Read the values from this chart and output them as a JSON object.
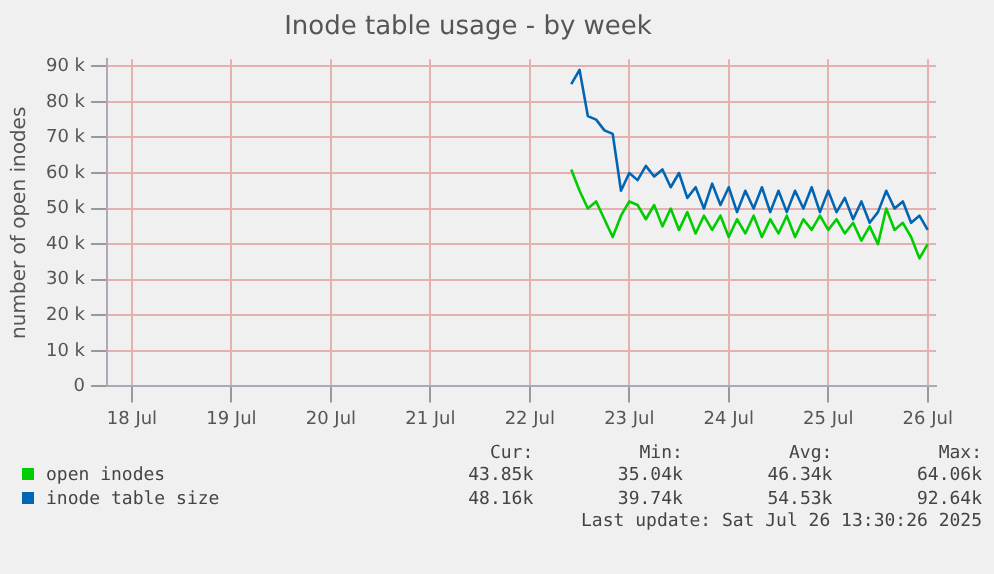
{
  "chart_data": {
    "type": "line",
    "title": "Inode table usage - by week",
    "ylabel": "number of open inodes",
    "x": [
      "2025-07-22T22:00",
      "2025-07-23T00:00",
      "2025-07-23T02:00",
      "2025-07-23T04:00",
      "2025-07-23T06:00",
      "2025-07-23T08:00",
      "2025-07-23T10:00",
      "2025-07-23T12:00",
      "2025-07-23T14:00",
      "2025-07-23T16:00",
      "2025-07-23T18:00",
      "2025-07-23T20:00",
      "2025-07-23T22:00",
      "2025-07-24T00:00",
      "2025-07-24T02:00",
      "2025-07-24T04:00",
      "2025-07-24T06:00",
      "2025-07-24T08:00",
      "2025-07-24T10:00",
      "2025-07-24T12:00",
      "2025-07-24T14:00",
      "2025-07-24T16:00",
      "2025-07-24T18:00",
      "2025-07-24T20:00",
      "2025-07-24T22:00",
      "2025-07-25T00:00",
      "2025-07-25T02:00",
      "2025-07-25T04:00",
      "2025-07-25T06:00",
      "2025-07-25T08:00",
      "2025-07-25T10:00",
      "2025-07-25T12:00",
      "2025-07-25T14:00",
      "2025-07-25T16:00",
      "2025-07-25T18:00",
      "2025-07-25T20:00",
      "2025-07-25T22:00",
      "2025-07-26T00:00",
      "2025-07-26T02:00",
      "2025-07-26T04:00",
      "2025-07-26T06:00",
      "2025-07-26T08:00",
      "2025-07-26T10:00",
      "2025-07-26T12:00"
    ],
    "series": [
      {
        "name": "open inodes",
        "color": "#00cc00",
        "values": [
          61000,
          55000,
          50000,
          52000,
          47000,
          42000,
          48000,
          52000,
          51000,
          47000,
          51000,
          45000,
          50000,
          44000,
          49000,
          43000,
          48000,
          44000,
          48000,
          42000,
          47000,
          43000,
          48000,
          42000,
          47000,
          43000,
          48000,
          42000,
          47000,
          44000,
          48000,
          44000,
          47000,
          43000,
          46000,
          41000,
          45000,
          40000,
          50000,
          44000,
          46000,
          42000,
          36000,
          40000
        ]
      },
      {
        "name": "inode table size",
        "color": "#0066b3",
        "values": [
          85000,
          89000,
          76000,
          75000,
          72000,
          71000,
          55000,
          60000,
          58000,
          62000,
          59000,
          61000,
          56000,
          60000,
          53000,
          56000,
          50000,
          57000,
          51000,
          56000,
          49000,
          55000,
          50000,
          56000,
          49000,
          55000,
          49000,
          55000,
          50000,
          56000,
          49000,
          55000,
          49000,
          53000,
          47000,
          52000,
          46000,
          49000,
          55000,
          50000,
          52000,
          46000,
          48000,
          44000
        ]
      }
    ],
    "ylim": [
      0,
      92000
    ],
    "yticks": [
      {
        "value": 0,
        "label": "0"
      },
      {
        "value": 10000,
        "label": "10 k"
      },
      {
        "value": 20000,
        "label": "20 k"
      },
      {
        "value": 30000,
        "label": "30 k"
      },
      {
        "value": 40000,
        "label": "40 k"
      },
      {
        "value": 50000,
        "label": "50 k"
      },
      {
        "value": 60000,
        "label": "60 k"
      },
      {
        "value": 70000,
        "label": "70 k"
      },
      {
        "value": 80000,
        "label": "80 k"
      },
      {
        "value": 90000,
        "label": "90 k"
      }
    ],
    "xlim": [
      "2025-07-18T06:00",
      "2025-07-26T14:00"
    ],
    "xticks": [
      {
        "value": "2025-07-18T12:00",
        "label": "18 Jul"
      },
      {
        "value": "2025-07-19T12:00",
        "label": "19 Jul"
      },
      {
        "value": "2025-07-20T12:00",
        "label": "20 Jul"
      },
      {
        "value": "2025-07-21T12:00",
        "label": "21 Jul"
      },
      {
        "value": "2025-07-22T12:00",
        "label": "22 Jul"
      },
      {
        "value": "2025-07-23T12:00",
        "label": "23 Jul"
      },
      {
        "value": "2025-07-24T12:00",
        "label": "24 Jul"
      },
      {
        "value": "2025-07-25T12:00",
        "label": "25 Jul"
      },
      {
        "value": "2025-07-26T12:00",
        "label": "26 Jul"
      }
    ],
    "grid": true,
    "legend": "bottom",
    "marker": "none",
    "line_style": "solid",
    "annotations": [
      "Cur:",
      "Min:",
      "Avg:",
      "Max:",
      "43.85k",
      "35.04k",
      "46.34k",
      "64.06k",
      "48.16k",
      "39.74k",
      "54.53k",
      "92.64k",
      "Last update: Sat Jul 26 13:30:26 2025"
    ]
  }
}
